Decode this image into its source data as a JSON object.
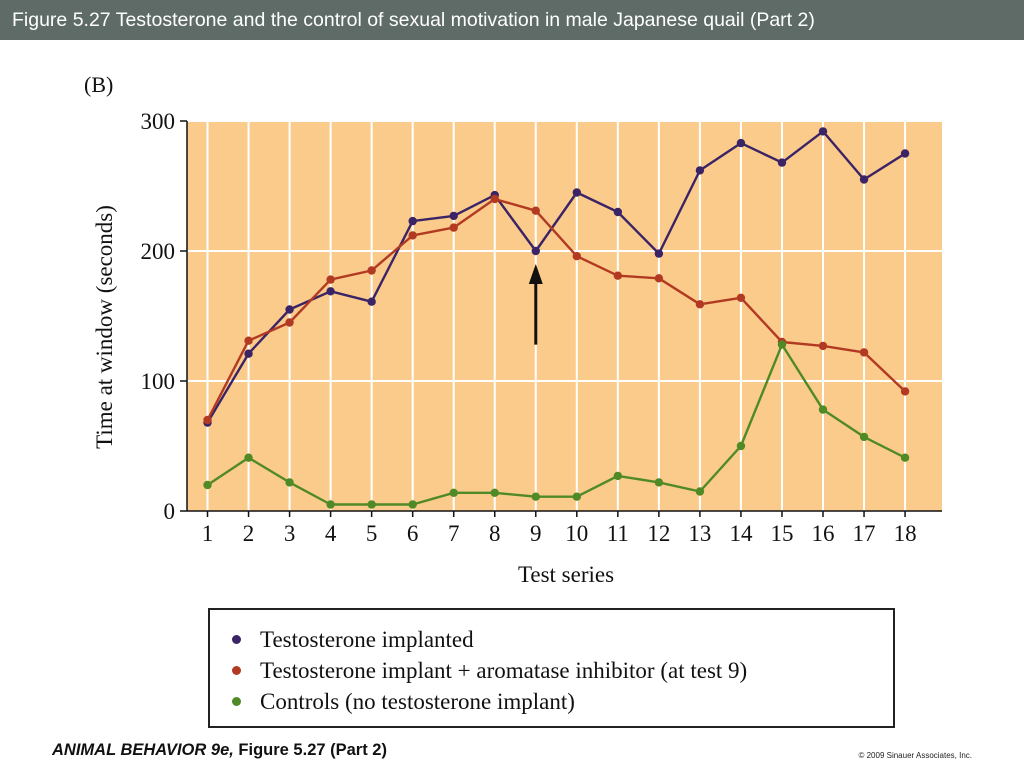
{
  "slide": {
    "title": "Figure 5.27  Testosterone and the control of sexual motivation in male Japanese quail (Part 2)",
    "footer_book": "ANIMAL BEHAVIOR 9e,",
    "footer_figure": " Figure 5.27 (Part 2)",
    "copyright": "© 2009 Sinauer Associates, Inc."
  },
  "colors": {
    "plot_background": "#fbcb8c",
    "grid": "#ffffff",
    "testosterone_implanted": "#3b2466",
    "aromatase_inhibitor": "#b23a22",
    "controls": "#4f8a27"
  },
  "chart_data": {
    "type": "line",
    "panel_label": "(B)",
    "title": "",
    "xlabel": "Test series",
    "ylabel": "Time at window (seconds)",
    "x": [
      1,
      2,
      3,
      4,
      5,
      6,
      7,
      8,
      9,
      10,
      11,
      12,
      13,
      14,
      15,
      16,
      17,
      18
    ],
    "x_tick_labels": [
      "1",
      "2",
      "3",
      "4",
      "5",
      "6",
      "7",
      "8",
      "9",
      "10",
      "11",
      "12",
      "13",
      "14",
      "15",
      "16",
      "17",
      "18"
    ],
    "xlim": [
      0.5,
      18.9
    ],
    "ylim": [
      0,
      300
    ],
    "y_ticks": [
      0,
      100,
      200,
      300
    ],
    "y_tick_labels": [
      "0",
      "100",
      "200",
      "300"
    ],
    "grid": true,
    "legend_position": "bottom",
    "annotation": {
      "type": "arrow",
      "x": 9,
      "from_y": 128,
      "to_y": 190
    },
    "series": [
      {
        "name": "Testosterone implanted",
        "color_key": "testosterone_implanted",
        "values": [
          68,
          121,
          155,
          169,
          161,
          223,
          227,
          243,
          200,
          245,
          230,
          198,
          262,
          283,
          268,
          292,
          255,
          275
        ]
      },
      {
        "name": "Testosterone implant + aromatase inhibitor (at test 9)",
        "color_key": "aromatase_inhibitor",
        "values": [
          70,
          131,
          145,
          178,
          185,
          212,
          218,
          240,
          231,
          196,
          181,
          179,
          159,
          164,
          130,
          127,
          122,
          92
        ]
      },
      {
        "name": "Controls (no testosterone implant)",
        "color_key": "controls",
        "values": [
          20,
          41,
          22,
          5,
          5,
          5,
          14,
          14,
          11,
          11,
          27,
          22,
          15,
          50,
          128,
          78,
          57,
          41
        ]
      }
    ]
  }
}
